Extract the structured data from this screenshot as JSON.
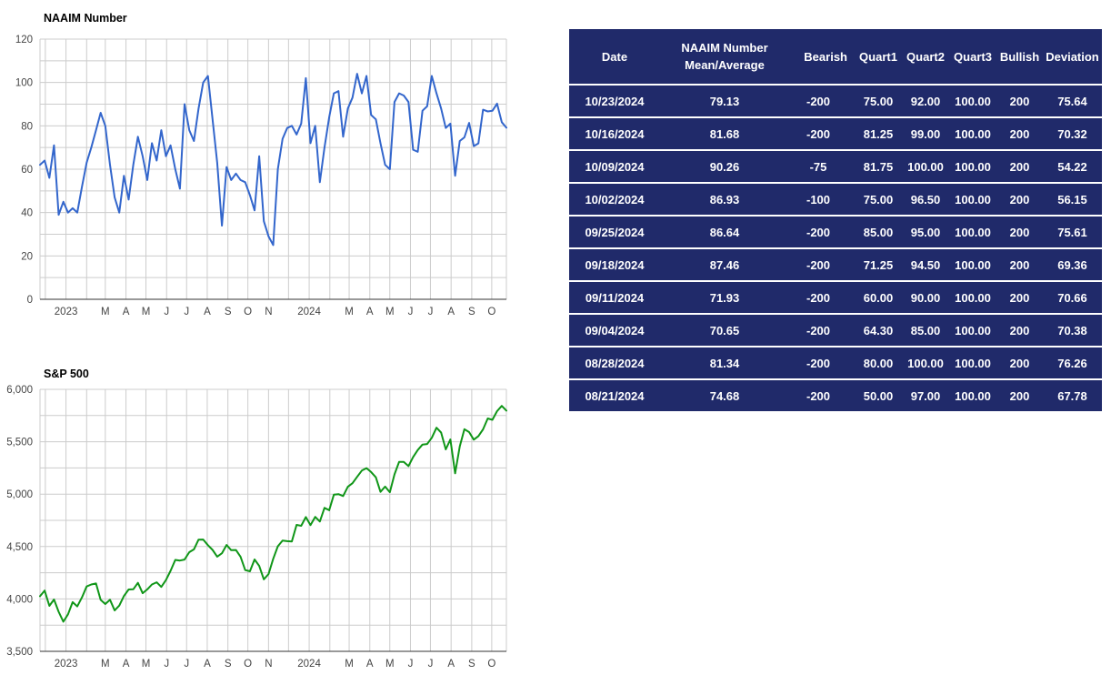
{
  "page": {
    "background": "#ffffff"
  },
  "chart_data": [
    {
      "id": "naaim",
      "type": "line",
      "title": "NAAIM Number",
      "line_color": "#3366cc",
      "grid_color": "#cccccc",
      "baseline_color": "#333333",
      "tick_color": "#444444",
      "interval": "weekly",
      "start_date": "2022-11-23",
      "end_date": "2024-10-23",
      "ylim": [
        0,
        120
      ],
      "y_minor_step": 10,
      "legend": "none",
      "y_ticks": [
        {
          "v": 0,
          "label": "0"
        },
        {
          "v": 20,
          "label": "20"
        },
        {
          "v": 40,
          "label": "40"
        },
        {
          "v": 60,
          "label": "60"
        },
        {
          "v": 80,
          "label": "80"
        },
        {
          "v": 100,
          "label": "100"
        },
        {
          "v": 120,
          "label": "120"
        }
      ],
      "x_ticks": [
        {
          "month": "2023-01",
          "label": "2023"
        },
        {
          "month": "2023-03",
          "label": "M"
        },
        {
          "month": "2023-04",
          "label": "A"
        },
        {
          "month": "2023-05",
          "label": "M"
        },
        {
          "month": "2023-06",
          "label": "J"
        },
        {
          "month": "2023-07",
          "label": "J"
        },
        {
          "month": "2023-08",
          "label": "A"
        },
        {
          "month": "2023-09",
          "label": "S"
        },
        {
          "month": "2023-10",
          "label": "O"
        },
        {
          "month": "2023-11",
          "label": "N"
        },
        {
          "month": "2024-01",
          "label": "2024"
        },
        {
          "month": "2024-03",
          "label": "M"
        },
        {
          "month": "2024-04",
          "label": "A"
        },
        {
          "month": "2024-05",
          "label": "M"
        },
        {
          "month": "2024-06",
          "label": "J"
        },
        {
          "month": "2024-07",
          "label": "J"
        },
        {
          "month": "2024-08",
          "label": "A"
        },
        {
          "month": "2024-09",
          "label": "S"
        },
        {
          "month": "2024-10",
          "label": "O"
        }
      ],
      "values": [
        62,
        64,
        56,
        71,
        39,
        45,
        40,
        42,
        40,
        52,
        63,
        70,
        78,
        86,
        80,
        62,
        47,
        40,
        57,
        46,
        62,
        75,
        66,
        55,
        72,
        64,
        78,
        66,
        71,
        60,
        51,
        90,
        78,
        73,
        88,
        100,
        103,
        83,
        63,
        34,
        61,
        55,
        58,
        55,
        54,
        48,
        41,
        66,
        36,
        29,
        25,
        60,
        74,
        79,
        80,
        76,
        81,
        102,
        72,
        80,
        54,
        70,
        84,
        95,
        96,
        75,
        88,
        93,
        104,
        95,
        103,
        85,
        83,
        72,
        62,
        60,
        91,
        95,
        94,
        91,
        69,
        68,
        87,
        89,
        103,
        95,
        88,
        79,
        81,
        57,
        73,
        74.68,
        81.34,
        70.65,
        71.93,
        87.46,
        86.64,
        86.93,
        90.26,
        81.68,
        79.13
      ]
    },
    {
      "id": "sp500",
      "type": "line",
      "title": "S&P 500",
      "line_color": "#109618",
      "grid_color": "#cccccc",
      "baseline_color": "#333333",
      "tick_color": "#444444",
      "interval": "weekly",
      "start_date": "2022-11-23",
      "end_date": "2024-10-23",
      "ylim": [
        3500,
        6000
      ],
      "y_minor_step": 250,
      "legend": "none",
      "y_ticks": [
        {
          "v": 3500,
          "label": "3,500"
        },
        {
          "v": 4000,
          "label": "4,000"
        },
        {
          "v": 4500,
          "label": "4,500"
        },
        {
          "v": 5000,
          "label": "5,000"
        },
        {
          "v": 5500,
          "label": "5,500"
        },
        {
          "v": 6000,
          "label": "6,000"
        }
      ],
      "x_ticks": [
        {
          "month": "2023-01",
          "label": "2023"
        },
        {
          "month": "2023-03",
          "label": "M"
        },
        {
          "month": "2023-04",
          "label": "A"
        },
        {
          "month": "2023-05",
          "label": "M"
        },
        {
          "month": "2023-06",
          "label": "J"
        },
        {
          "month": "2023-07",
          "label": "J"
        },
        {
          "month": "2023-08",
          "label": "A"
        },
        {
          "month": "2023-09",
          "label": "S"
        },
        {
          "month": "2023-10",
          "label": "O"
        },
        {
          "month": "2023-11",
          "label": "N"
        },
        {
          "month": "2024-01",
          "label": "2024"
        },
        {
          "month": "2024-03",
          "label": "M"
        },
        {
          "month": "2024-04",
          "label": "A"
        },
        {
          "month": "2024-05",
          "label": "M"
        },
        {
          "month": "2024-06",
          "label": "J"
        },
        {
          "month": "2024-07",
          "label": "J"
        },
        {
          "month": "2024-08",
          "label": "A"
        },
        {
          "month": "2024-09",
          "label": "S"
        },
        {
          "month": "2024-10",
          "label": "O"
        }
      ],
      "values": [
        4026,
        4080,
        3934,
        3995,
        3878,
        3783,
        3853,
        3970,
        3929,
        4016,
        4119,
        4138,
        4148,
        3991,
        3951,
        3992,
        3891,
        3937,
        4028,
        4090,
        4092,
        4154,
        4055,
        4091,
        4138,
        4159,
        4115,
        4180,
        4268,
        4372,
        4366,
        4376,
        4446,
        4473,
        4566,
        4567,
        4513,
        4468,
        4404,
        4436,
        4515,
        4465,
        4467,
        4402,
        4275,
        4264,
        4377,
        4315,
        4187,
        4238,
        4383,
        4503,
        4557,
        4551,
        4549,
        4707,
        4698,
        4781,
        4705,
        4783,
        4739,
        4869,
        4846,
        4995,
        5000,
        4982,
        5070,
        5104,
        5165,
        5225,
        5248,
        5211,
        5161,
        5022,
        5072,
        5018,
        5188,
        5308,
        5307,
        5267,
        5354,
        5421,
        5473,
        5478,
        5537,
        5634,
        5588,
        5427,
        5522,
        5199,
        5455,
        5620,
        5592,
        5520,
        5554,
        5618,
        5722,
        5709,
        5792,
        5842,
        5797
      ]
    }
  ],
  "table": {
    "colors": {
      "background": "#202a6a",
      "text": "#ffffff",
      "separator": "#ffffff"
    },
    "header": [
      "Date",
      "NAAIM Number\nMean/Average",
      "Bearish",
      "Quart1",
      "Quart2",
      "Quart3",
      "Bullish",
      "Deviation"
    ],
    "col_align": [
      "center",
      "center",
      "right",
      "center",
      "center",
      "center",
      "center",
      "center"
    ],
    "rows": [
      [
        "10/23/2024",
        "79.13",
        "-200",
        "75.00",
        "92.00",
        "100.00",
        "200",
        "75.64"
      ],
      [
        "10/16/2024",
        "81.68",
        "-200",
        "81.25",
        "99.00",
        "100.00",
        "200",
        "70.32"
      ],
      [
        "10/09/2024",
        "90.26",
        "-75",
        "81.75",
        "100.00",
        "100.00",
        "200",
        "54.22"
      ],
      [
        "10/02/2024",
        "86.93",
        "-100",
        "75.00",
        "96.50",
        "100.00",
        "200",
        "56.15"
      ],
      [
        "09/25/2024",
        "86.64",
        "-200",
        "85.00",
        "95.00",
        "100.00",
        "200",
        "75.61"
      ],
      [
        "09/18/2024",
        "87.46",
        "-200",
        "71.25",
        "94.50",
        "100.00",
        "200",
        "69.36"
      ],
      [
        "09/11/2024",
        "71.93",
        "-200",
        "60.00",
        "90.00",
        "100.00",
        "200",
        "70.66"
      ],
      [
        "09/04/2024",
        "70.65",
        "-200",
        "64.30",
        "85.00",
        "100.00",
        "200",
        "70.38"
      ],
      [
        "08/28/2024",
        "81.34",
        "-200",
        "80.00",
        "100.00",
        "100.00",
        "200",
        "76.26"
      ],
      [
        "08/21/2024",
        "74.68",
        "-200",
        "50.00",
        "97.00",
        "100.00",
        "200",
        "67.78"
      ]
    ]
  }
}
